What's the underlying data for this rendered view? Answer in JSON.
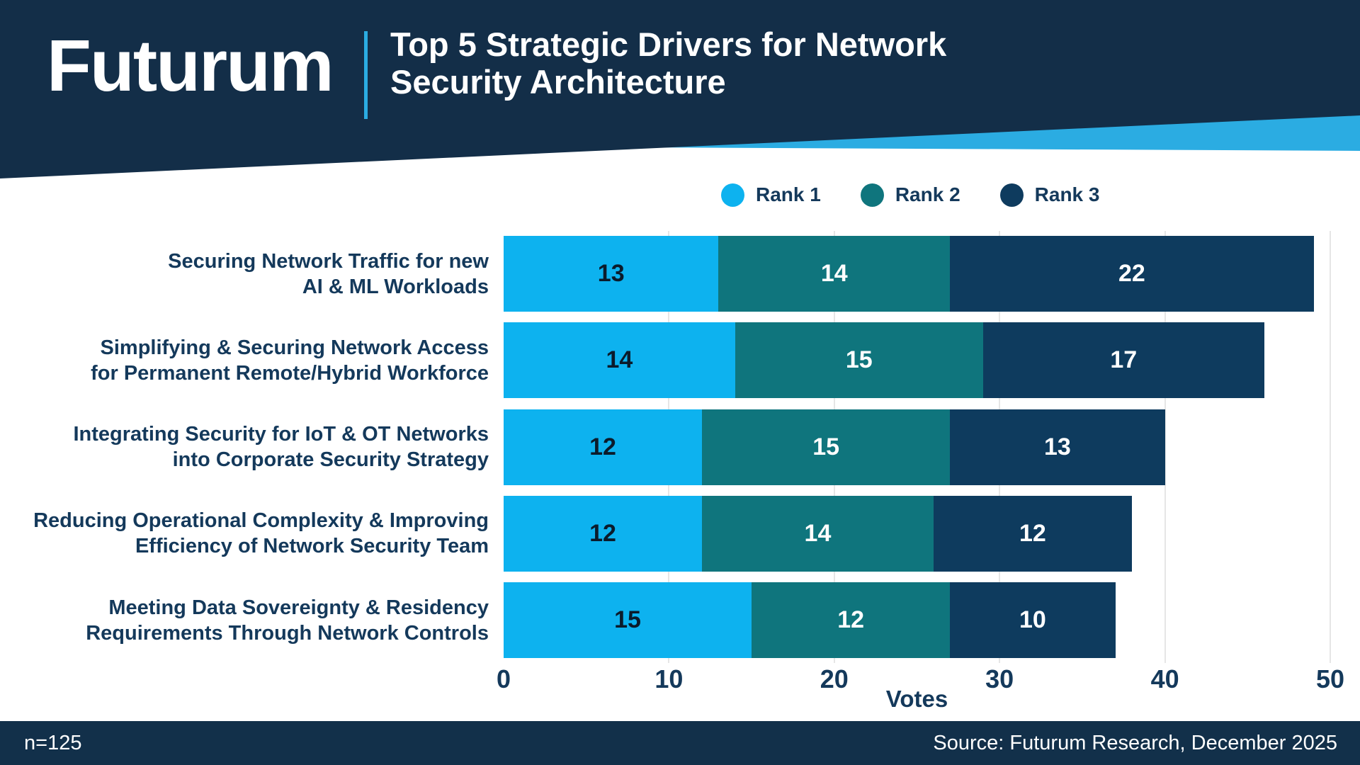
{
  "header": {
    "logo_text": "Futurum",
    "title_line1": "Top 5 Strategic Drivers for Network",
    "title_line2": "Security Architecture",
    "bg_color": "#132E48",
    "accent_color": "#2BACE2"
  },
  "footer": {
    "sample_size": "n=125",
    "source": "Source: Futurum Research, December 2025",
    "bg_color": "#12304A"
  },
  "colors": {
    "rank1": "#0DB2EF",
    "rank2": "#0F757D",
    "rank3": "#0E3B5E",
    "text_navy": "#14395B",
    "value_on_rank1": "#0B1B2B",
    "value_on_dark": "#ffffff",
    "gridline": "#E6E6E6"
  },
  "chart_data": {
    "type": "bar",
    "orientation": "horizontal-stacked",
    "title": "Top 5 Strategic Drivers for Network Security Architecture",
    "xlabel": "Votes",
    "xlim": [
      0,
      50
    ],
    "xticks": [
      0,
      10,
      20,
      30,
      40,
      50
    ],
    "grid": "vertical-light",
    "legend_position": "top",
    "categories": [
      "Securing Network Traffic for new AI & ML Workloads",
      "Simplifying & Securing Network Access for Permanent Remote/Hybrid Workforce",
      "Integrating Security for IoT & OT Networks into Corporate Security Strategy",
      "Reducing Operational Complexity & Improving Efficiency of Network Security Team",
      "Meeting Data Sovereignty & Residency Requirements Through Network Controls"
    ],
    "category_lines": [
      [
        "Securing Network Traffic for new",
        "AI & ML Workloads"
      ],
      [
        "Simplifying & Securing Network Access",
        "for Permanent Remote/Hybrid Workforce"
      ],
      [
        "Integrating Security for IoT & OT Networks",
        "into Corporate Security Strategy"
      ],
      [
        "Reducing Operational Complexity & Improving",
        "Efficiency of Network Security Team"
      ],
      [
        "Meeting Data Sovereignty & Residency",
        "Requirements Through Network Controls"
      ]
    ],
    "series": [
      {
        "name": "Rank 1",
        "color": "#0DB2EF",
        "values": [
          13,
          14,
          12,
          12,
          15
        ]
      },
      {
        "name": "Rank 2",
        "color": "#0F757D",
        "values": [
          14,
          15,
          15,
          14,
          12
        ]
      },
      {
        "name": "Rank 3",
        "color": "#0E3B5E",
        "values": [
          22,
          17,
          13,
          12,
          10
        ]
      }
    ]
  }
}
